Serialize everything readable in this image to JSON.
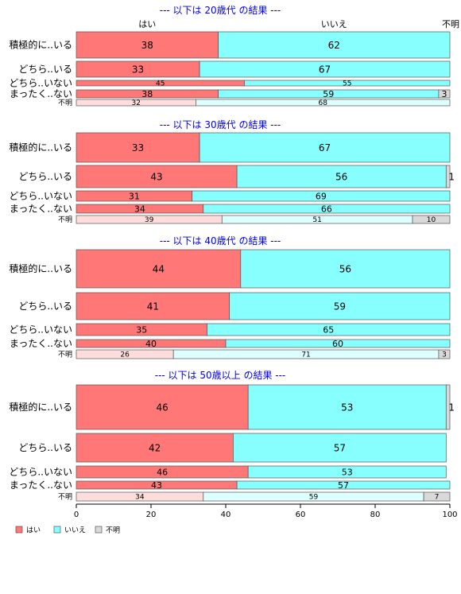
{
  "chart_data": {
    "type": "bar",
    "orientation": "horizontal",
    "stacked": "percent",
    "category_names": [
      "はい",
      "いいえ",
      "不明"
    ],
    "category_colors": [
      "#ff7777",
      "#88ffff",
      "#d9d9d9"
    ],
    "unknown_row_colors": [
      "#ffdddd",
      "#ddffff",
      "#d9d9d9"
    ],
    "xlim": [
      0,
      100
    ],
    "xticks": [
      0,
      20,
      40,
      60,
      80,
      100
    ],
    "header_labels": [
      {
        "text": "はい",
        "x": 19
      },
      {
        "text": "いいえ",
        "x": 69
      },
      {
        "text": "不明",
        "x": 100
      }
    ],
    "legend": [
      {
        "label": "はい",
        "color": "#ff7777"
      },
      {
        "label": "いいえ",
        "color": "#88ffff"
      },
      {
        "label": "不明",
        "color": "#d9d9d9"
      }
    ],
    "panels": [
      {
        "title": "--- 以下は 20歳代 の結果 ---",
        "rows": [
          {
            "label": "積極的に..いる",
            "values": [
              38,
              62,
              0
            ],
            "labels": [
              "38",
              "62",
              ""
            ]
          },
          {
            "label": "どちら..いる",
            "values": [
              33,
              67,
              0
            ],
            "labels": [
              "33",
              "67",
              ""
            ]
          },
          {
            "label": "どちら..いない",
            "values": [
              45,
              55,
              0
            ],
            "labels": [
              "45",
              "55",
              ""
            ]
          },
          {
            "label": "まったく..ない",
            "values": [
              38,
              59,
              3
            ],
            "labels": [
              "38",
              "59",
              "3"
            ]
          },
          {
            "label": "不明",
            "values": [
              32,
              68,
              0
            ],
            "labels": [
              "32",
              "68",
              ""
            ]
          }
        ]
      },
      {
        "title": "--- 以下は 30歳代 の結果 ---",
        "rows": [
          {
            "label": "積極的に..いる",
            "values": [
              33,
              67,
              0
            ],
            "labels": [
              "33",
              "67",
              ""
            ]
          },
          {
            "label": "どちら..いる",
            "values": [
              43,
              56,
              1
            ],
            "labels": [
              "43",
              "56",
              "1"
            ]
          },
          {
            "label": "どちら..いない",
            "values": [
              31,
              69,
              0
            ],
            "labels": [
              "31",
              "69",
              ""
            ]
          },
          {
            "label": "まったく..ない",
            "values": [
              34,
              66,
              0
            ],
            "labels": [
              "34",
              "66",
              ""
            ]
          },
          {
            "label": "不明",
            "values": [
              39,
              51,
              10
            ],
            "labels": [
              "39",
              "51",
              "10"
            ]
          }
        ]
      },
      {
        "title": "--- 以下は 40歳代 の結果 ---",
        "rows": [
          {
            "label": "積極的に..いる",
            "values": [
              44,
              56,
              0
            ],
            "labels": [
              "44",
              "56",
              ""
            ]
          },
          {
            "label": "どちら..いる",
            "values": [
              41,
              59,
              0
            ],
            "labels": [
              "41",
              "59",
              ""
            ]
          },
          {
            "label": "どちら..いない",
            "values": [
              35,
              65,
              0
            ],
            "labels": [
              "35",
              "65",
              ""
            ]
          },
          {
            "label": "まったく..ない",
            "values": [
              40,
              60,
              0
            ],
            "labels": [
              "40",
              "60",
              ""
            ]
          },
          {
            "label": "不明",
            "values": [
              26,
              71,
              3
            ],
            "labels": [
              "26",
              "71",
              "3"
            ]
          }
        ]
      },
      {
        "title": "--- 以下は 50歳以上 の結果 ---",
        "rows": [
          {
            "label": "積極的に..いる",
            "values": [
              46,
              53,
              1
            ],
            "labels": [
              "46",
              "53",
              "1"
            ]
          },
          {
            "label": "どちら..いる",
            "values": [
              42,
              57,
              0
            ],
            "labels": [
              "42",
              "57",
              ""
            ]
          },
          {
            "label": "どちら..いない",
            "values": [
              46,
              53,
              0
            ],
            "labels": [
              "46",
              "53",
              ""
            ]
          },
          {
            "label": "まったく..ない",
            "values": [
              43,
              57,
              0
            ],
            "labels": [
              "43",
              "57",
              ""
            ]
          },
          {
            "label": "不明",
            "values": [
              34,
              59,
              7
            ],
            "labels": [
              "34",
              "59",
              "7"
            ]
          }
        ]
      }
    ]
  }
}
